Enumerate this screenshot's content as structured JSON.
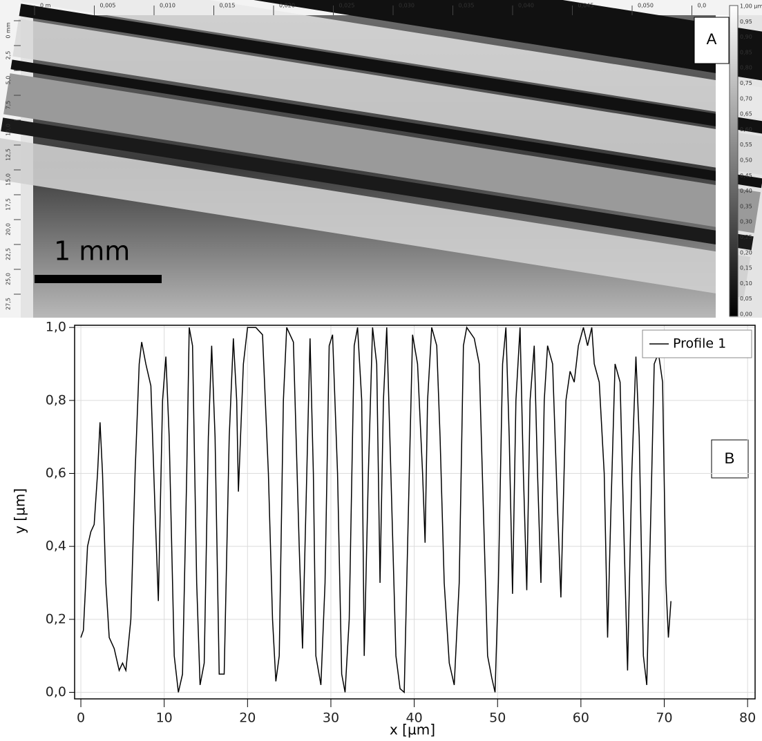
{
  "panel_a": {
    "label": "A",
    "scale_bar": "1 mm",
    "top_ruler": [
      "0 m",
      "0,005",
      "0,010",
      "0,015",
      "0,020",
      "0,025",
      "0,030",
      "0,035",
      "0,040",
      "0,045",
      "0,050",
      "0,0"
    ],
    "left_ruler": [
      "0 mm",
      "2,5",
      "5,0",
      "7,5",
      "10,0",
      "12,5",
      "15,0",
      "17,5",
      "20,0",
      "22,5",
      "25,0",
      "27,5"
    ],
    "color_bar": [
      "1,00 µm",
      "0,95",
      "0,90",
      "0,85",
      "0,80",
      "0,75",
      "0,70",
      "0,65",
      "0,60",
      "0,55",
      "0,50",
      "0,45",
      "0,40",
      "0,35",
      "0,30",
      "0,25",
      "0,20",
      "0,15",
      "0,10",
      "0,05",
      "0,00"
    ]
  },
  "chart_data": {
    "type": "line",
    "panel_label": "B",
    "x_label": "x [µm]",
    "y_label": "y [µm]",
    "xlim": [
      -0.75,
      80.9
    ],
    "ylim": [
      -0.018,
      1.006
    ],
    "xticks": [
      0,
      10,
      20,
      30,
      40,
      50,
      60,
      70,
      80
    ],
    "yticks": [
      {
        "value": 0,
        "label": "0,0"
      },
      {
        "value": 0.2,
        "label": "0,2"
      },
      {
        "value": 0.4,
        "label": "0,4"
      },
      {
        "value": 0.6,
        "label": "0,6"
      },
      {
        "value": 0.8,
        "label": "0,8"
      },
      {
        "value": 1,
        "label": "1,0"
      }
    ],
    "grid": true,
    "legend": "upper right",
    "x": [
      0,
      0.3,
      0.8,
      1.2,
      1.6,
      2.0,
      2.3,
      2.6,
      3.0,
      3.4,
      4.0,
      4.6,
      5.0,
      5.4,
      6.0,
      6.5,
      7.0,
      7.3,
      7.8,
      8.4,
      8.9,
      9.3,
      9.8,
      10.2,
      10.6,
      11.2,
      11.7,
      12.2,
      12.7,
      13.0,
      13.4,
      13.9,
      14.3,
      14.8,
      15.3,
      15.7,
      16.1,
      16.6,
      17.2,
      17.8,
      18.3,
      18.7,
      18.9,
      19.5,
      20.0,
      21.0,
      21.8,
      22.5,
      23.0,
      23.4,
      23.8,
      24.3,
      24.7,
      25.5,
      26.2,
      26.6,
      27.0,
      27.5,
      27.9,
      28.2,
      28.8,
      29.3,
      29.8,
      30.2,
      30.8,
      31.3,
      31.7,
      32.2,
      32.8,
      33.2,
      33.7,
      34.0,
      34.5,
      35.0,
      35.5,
      35.9,
      36.3,
      36.7,
      37.2,
      37.8,
      38.3,
      38.8,
      39.3,
      39.8,
      40.4,
      41.0,
      41.3,
      41.6,
      42.1,
      42.7,
      43.1,
      43.6,
      44.2,
      44.8,
      45.4,
      45.9,
      46.3,
      47.2,
      47.8,
      48.3,
      48.8,
      49.3,
      49.7,
      50.1,
      50.6,
      51.0,
      51.4,
      51.8,
      52.2,
      52.7,
      53.1,
      53.5,
      53.9,
      54.4,
      54.8,
      55.2,
      55.6,
      56.0,
      56.6,
      57.2,
      57.6,
      58.2,
      58.7,
      59.2,
      59.7,
      60.3,
      60.8,
      61.3,
      61.6,
      62.2,
      62.8,
      63.2,
      63.6,
      64.1,
      64.7,
      65.2,
      65.6,
      66.1,
      66.6,
      67.0,
      67.5,
      67.9,
      68.4,
      68.8,
      69.3,
      69.8,
      70.2,
      70.5,
      70.8
    ],
    "series": [
      {
        "name": "Profile 1",
        "color": "#000000",
        "values": [
          0.15,
          0.17,
          0.4,
          0.44,
          0.46,
          0.6,
          0.74,
          0.6,
          0.3,
          0.15,
          0.12,
          0.06,
          0.08,
          0.06,
          0.2,
          0.6,
          0.9,
          0.96,
          0.9,
          0.84,
          0.5,
          0.25,
          0.8,
          0.92,
          0.7,
          0.1,
          0.0,
          0.05,
          0.6,
          1.0,
          0.95,
          0.3,
          0.02,
          0.08,
          0.7,
          0.95,
          0.7,
          0.05,
          0.05,
          0.7,
          0.97,
          0.8,
          0.55,
          0.9,
          1.0,
          1.0,
          0.98,
          0.6,
          0.2,
          0.03,
          0.1,
          0.8,
          1.0,
          0.96,
          0.4,
          0.12,
          0.5,
          0.97,
          0.6,
          0.1,
          0.02,
          0.3,
          0.95,
          0.98,
          0.6,
          0.05,
          0.0,
          0.2,
          0.95,
          1.0,
          0.8,
          0.1,
          0.6,
          1.0,
          0.9,
          0.3,
          0.8,
          1.0,
          0.6,
          0.1,
          0.01,
          0.0,
          0.5,
          0.98,
          0.9,
          0.6,
          0.41,
          0.8,
          1.0,
          0.95,
          0.7,
          0.3,
          0.08,
          0.02,
          0.3,
          0.95,
          1.0,
          0.97,
          0.9,
          0.5,
          0.1,
          0.04,
          0.0,
          0.3,
          0.9,
          1.0,
          0.7,
          0.27,
          0.8,
          1.0,
          0.6,
          0.28,
          0.8,
          0.95,
          0.6,
          0.3,
          0.8,
          0.95,
          0.9,
          0.5,
          0.26,
          0.8,
          0.88,
          0.85,
          0.95,
          1.0,
          0.95,
          1.0,
          0.9,
          0.85,
          0.6,
          0.15,
          0.5,
          0.9,
          0.85,
          0.4,
          0.06,
          0.6,
          0.92,
          0.7,
          0.1,
          0.02,
          0.5,
          0.9,
          0.93,
          0.85,
          0.3,
          0.15,
          0.25
        ]
      }
    ]
  }
}
